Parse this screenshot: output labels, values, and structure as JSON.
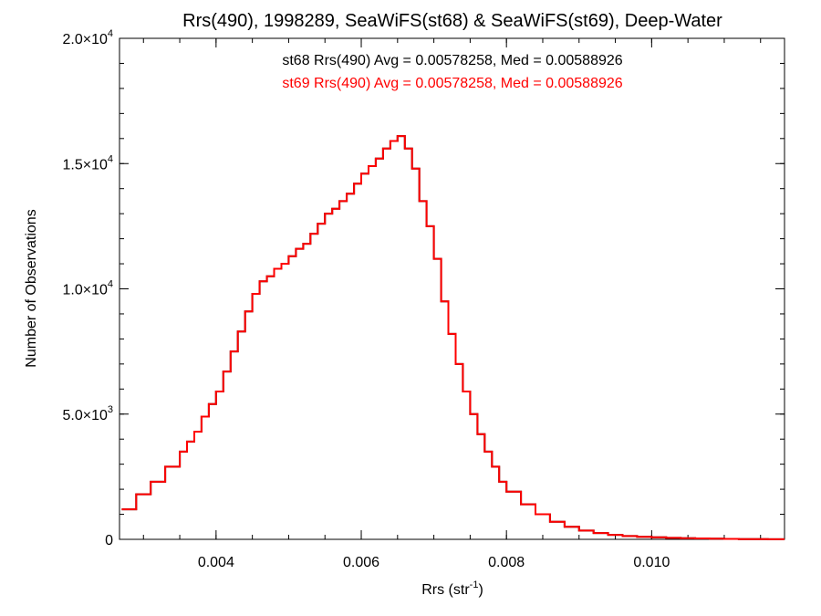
{
  "chart_data": {
    "type": "histogram-step",
    "title": "Rrs(490), 1998289, SeaWiFS(st68) & SeaWiFS(st69), Deep-Water",
    "annotations": [
      {
        "text": "st68 Rrs(490) Avg = 0.00578258, Med = 0.00588926",
        "color": "#000000"
      },
      {
        "text": "st69 Rrs(490) Avg = 0.00578258, Med = 0.00588926",
        "color": "#ff0000"
      }
    ],
    "xlabel": {
      "base": "Rrs (str",
      "sup": "-1",
      "tail": ")"
    },
    "ylabel": "Number of Observations",
    "xlim": [
      0.00267,
      0.01183
    ],
    "ylim": [
      0,
      20000
    ],
    "x_ticks": [
      {
        "value": 0.004,
        "label": "0.004"
      },
      {
        "value": 0.006,
        "label": "0.006"
      },
      {
        "value": 0.008,
        "label": "0.008"
      },
      {
        "value": 0.01,
        "label": "0.010"
      }
    ],
    "y_ticks": [
      {
        "value": 0,
        "base": "0",
        "exp": ""
      },
      {
        "value": 5000,
        "base": "5.0×10",
        "exp": "3"
      },
      {
        "value": 10000,
        "base": "1.0×10",
        "exp": "4"
      },
      {
        "value": 15000,
        "base": "1.5×10",
        "exp": "4"
      },
      {
        "value": 20000,
        "base": "2.0×10",
        "exp": "4"
      }
    ],
    "x_minor_step": 0.0005,
    "y_minor_step": 1000,
    "series": [
      {
        "name": "st68",
        "color": "#000000",
        "x": [
          0.0027,
          0.0029,
          0.0031,
          0.0033,
          0.0035,
          0.0036,
          0.0037,
          0.0038,
          0.0039,
          0.004,
          0.0041,
          0.0042,
          0.0043,
          0.0044,
          0.0045,
          0.0046,
          0.0047,
          0.0048,
          0.0049,
          0.005,
          0.0051,
          0.0052,
          0.0053,
          0.0054,
          0.0055,
          0.0056,
          0.0057,
          0.0058,
          0.0059,
          0.006,
          0.0061,
          0.0062,
          0.0063,
          0.0064,
          0.0065,
          0.0066,
          0.0067,
          0.0068,
          0.0069,
          0.007,
          0.0071,
          0.0072,
          0.0073,
          0.0074,
          0.0075,
          0.0076,
          0.0077,
          0.0078,
          0.0079,
          0.008,
          0.0082,
          0.0084,
          0.0086,
          0.0088,
          0.009,
          0.0092,
          0.0094,
          0.0096,
          0.0098,
          0.01,
          0.0102,
          0.0104,
          0.0106,
          0.0108,
          0.011,
          0.0112,
          0.0114,
          0.0116,
          0.0118
        ],
        "y": [
          1200,
          1800,
          2300,
          2900,
          3500,
          3900,
          4300,
          4900,
          5400,
          5900,
          6700,
          7500,
          8300,
          9100,
          9800,
          10300,
          10500,
          10800,
          11000,
          11300,
          11600,
          11800,
          12200,
          12600,
          13000,
          13200,
          13500,
          13800,
          14200,
          14600,
          14900,
          15200,
          15600,
          15900,
          16100,
          15600,
          14800,
          13500,
          12500,
          11200,
          9500,
          8200,
          7000,
          5900,
          5000,
          4200,
          3500,
          2900,
          2300,
          1900,
          1400,
          1000,
          700,
          500,
          350,
          250,
          180,
          130,
          100,
          80,
          60,
          45,
          35,
          25,
          18,
          12,
          8,
          5,
          3
        ]
      },
      {
        "name": "st69",
        "color": "#ff0000",
        "x": [
          0.0027,
          0.0029,
          0.0031,
          0.0033,
          0.0035,
          0.0036,
          0.0037,
          0.0038,
          0.0039,
          0.004,
          0.0041,
          0.0042,
          0.0043,
          0.0044,
          0.0045,
          0.0046,
          0.0047,
          0.0048,
          0.0049,
          0.005,
          0.0051,
          0.0052,
          0.0053,
          0.0054,
          0.0055,
          0.0056,
          0.0057,
          0.0058,
          0.0059,
          0.006,
          0.0061,
          0.0062,
          0.0063,
          0.0064,
          0.0065,
          0.0066,
          0.0067,
          0.0068,
          0.0069,
          0.007,
          0.0071,
          0.0072,
          0.0073,
          0.0074,
          0.0075,
          0.0076,
          0.0077,
          0.0078,
          0.0079,
          0.008,
          0.0082,
          0.0084,
          0.0086,
          0.0088,
          0.009,
          0.0092,
          0.0094,
          0.0096,
          0.0098,
          0.01,
          0.0102,
          0.0104,
          0.0106,
          0.0108,
          0.011,
          0.0112,
          0.0114,
          0.0116,
          0.0118
        ],
        "y": [
          1200,
          1800,
          2300,
          2900,
          3500,
          3900,
          4300,
          4900,
          5400,
          5900,
          6700,
          7500,
          8300,
          9100,
          9800,
          10300,
          10500,
          10800,
          11000,
          11300,
          11600,
          11800,
          12200,
          12600,
          13000,
          13200,
          13500,
          13800,
          14200,
          14600,
          14900,
          15200,
          15600,
          15900,
          16100,
          15600,
          14800,
          13500,
          12500,
          11200,
          9500,
          8200,
          7000,
          5900,
          5000,
          4200,
          3500,
          2900,
          2300,
          1900,
          1400,
          1000,
          700,
          500,
          350,
          250,
          180,
          130,
          100,
          80,
          60,
          45,
          35,
          25,
          18,
          12,
          8,
          5,
          3
        ]
      }
    ]
  }
}
